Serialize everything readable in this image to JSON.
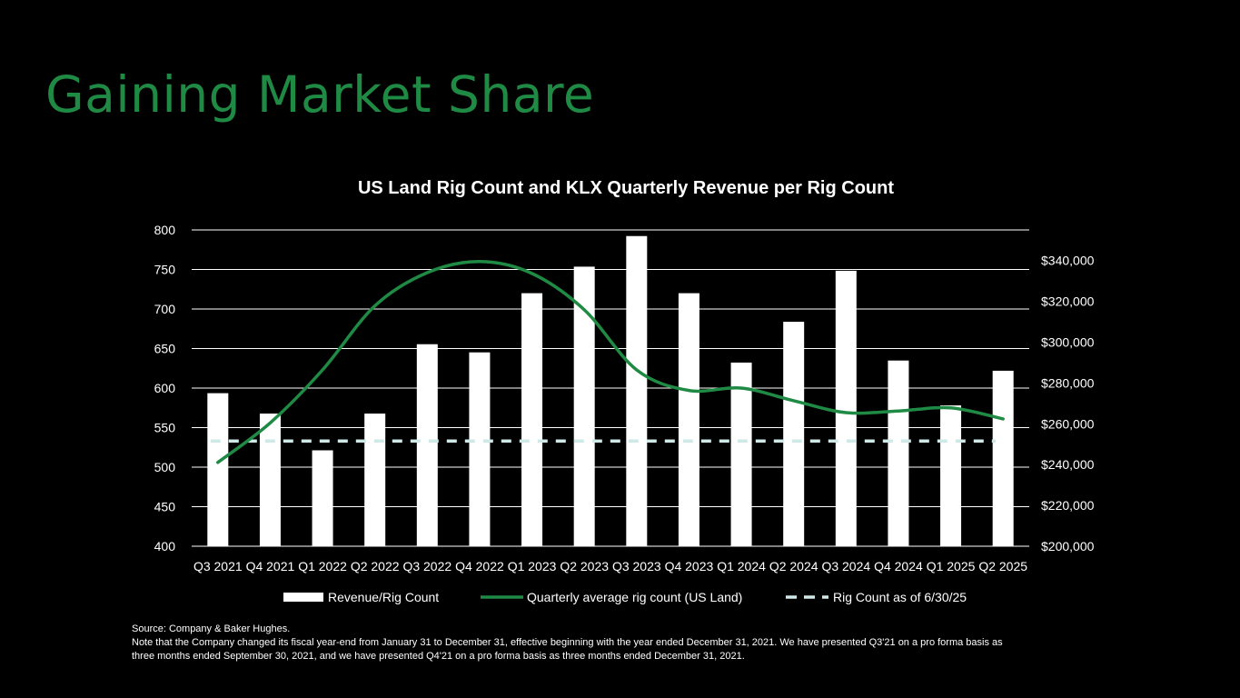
{
  "page": {
    "title": "Gaining Market Share"
  },
  "colors": {
    "background": "#000000",
    "accent": "#1f8a44",
    "bar": "#ffffff",
    "line": "#1f8a44",
    "dashed": "#cfe8e8",
    "grid": "#ffffff"
  },
  "chart_data": {
    "type": "bar",
    "title": "US Land Rig Count and KLX Quarterly Revenue per Rig Count",
    "categories": [
      "Q3 2021",
      "Q4 2021",
      "Q1 2022",
      "Q2 2022",
      "Q3 2022",
      "Q4 2022",
      "Q1 2023",
      "Q2 2023",
      "Q3 2023",
      "Q4 2023",
      "Q1 2024",
      "Q2 2024",
      "Q3 2024",
      "Q4 2024",
      "Q1 2025",
      "Q2 2025"
    ],
    "left_axis": {
      "ylim": [
        400,
        800
      ],
      "ticks": [
        "400",
        "450",
        "500",
        "550",
        "600",
        "650",
        "700",
        "750",
        "800"
      ]
    },
    "right_axis": {
      "ylim": [
        200000,
        355000
      ],
      "ticks": [
        "$200,000",
        "$220,000",
        "$240,000",
        "$260,000",
        "$280,000",
        "$300,000",
        "$320,000",
        "$340,000"
      ]
    },
    "series": [
      {
        "name": "Revenue/Rig Count",
        "type": "bar",
        "axis": "right",
        "values": [
          275000,
          265000,
          247000,
          265000,
          299000,
          295000,
          324000,
          337000,
          352000,
          324000,
          290000,
          310000,
          335000,
          291000,
          269000,
          286000
        ]
      },
      {
        "name": "Quarterly average rig count (US Land)",
        "type": "line",
        "axis": "left",
        "values": [
          506,
          556,
          623,
          704,
          746,
          760,
          745,
          699,
          623,
          597,
          600,
          584,
          569,
          571,
          575,
          561
        ]
      },
      {
        "name": "Rig Count as of 6/30/25",
        "type": "dashed",
        "axis": "left",
        "value": 533
      }
    ],
    "legend": "bottom",
    "grid": true
  },
  "footnotes": {
    "source": "Source: Company & Baker Hughes.",
    "note_line1": "Note that the Company changed its fiscal year-end from January 31 to December 31, effective beginning with the year ended December 31, 2021. We have presented Q3'21 on a pro forma basis as",
    "note_line2": "three months ended September 30, 2021, and we have presented Q4'21 on a pro forma basis as three months ended December 31, 2021."
  }
}
